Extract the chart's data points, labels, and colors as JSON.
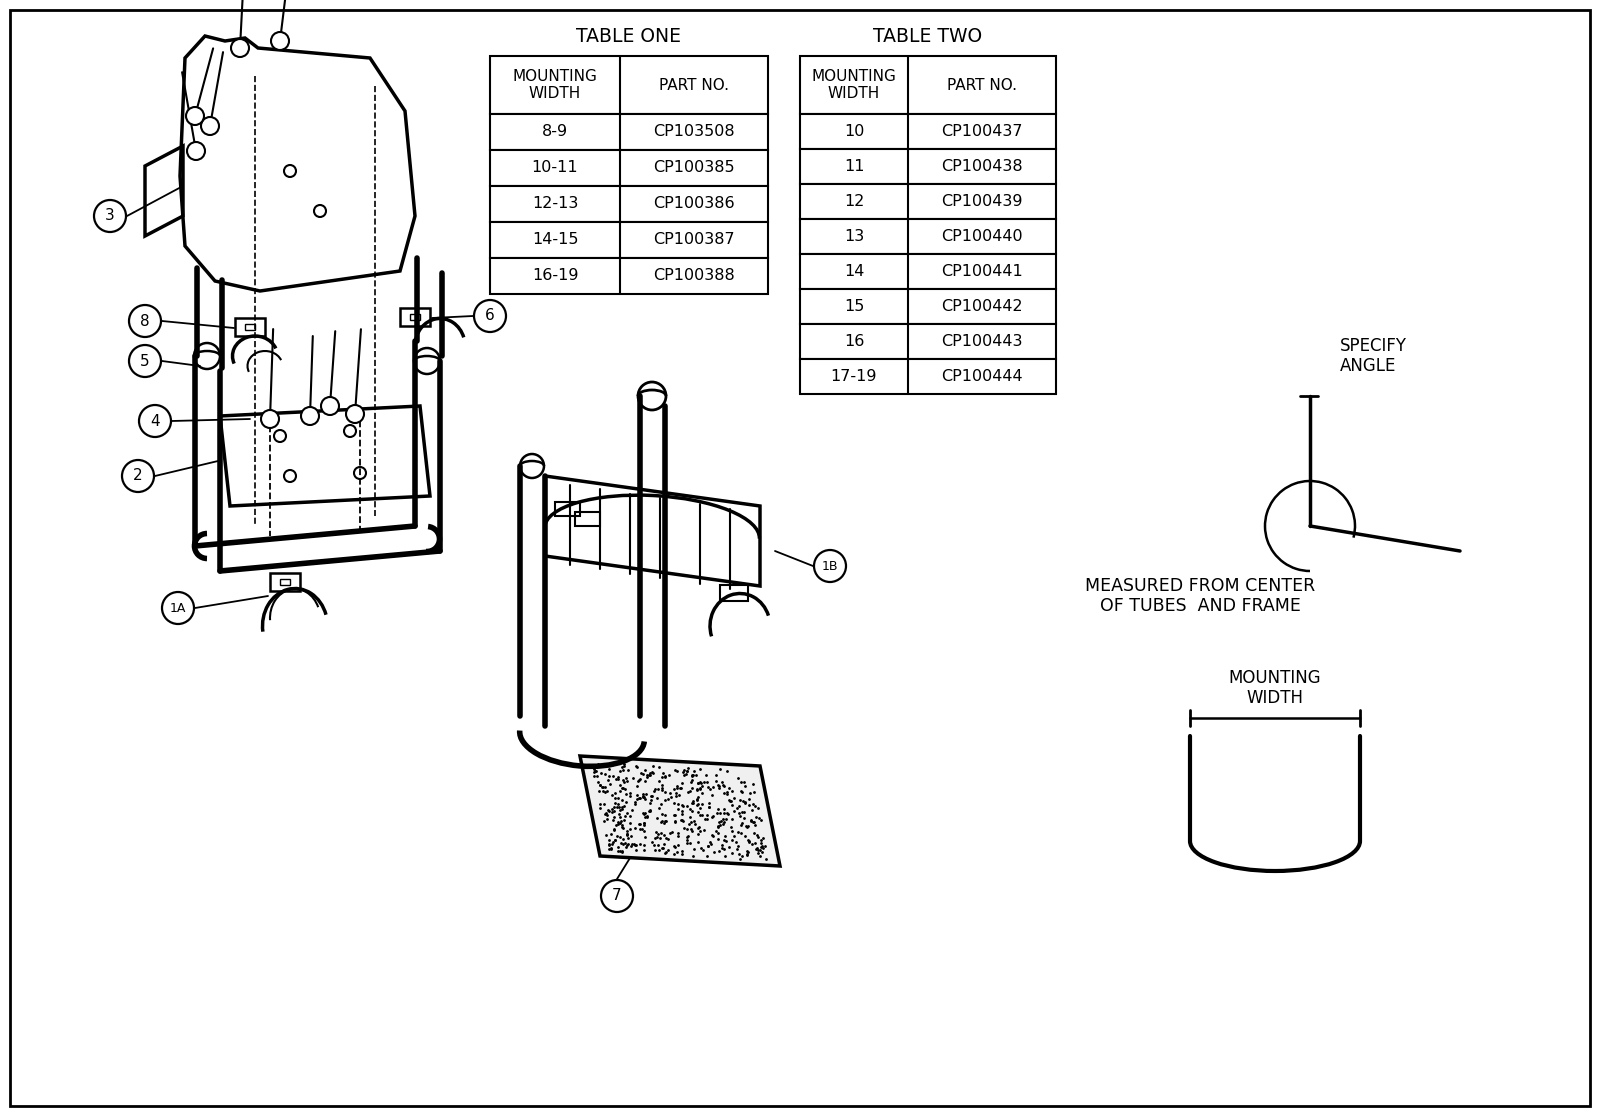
{
  "background_color": "#ffffff",
  "border_color": "#000000",
  "table_one_title": "TABLE ONE",
  "table_two_title": "TABLE TWO",
  "table_one_header_col1": "MOUNTING\nWIDTH",
  "table_one_header_col2": "PART NO.",
  "table_two_header_col1": "MOUNTING\nWIDTH",
  "table_two_header_col2": "PART NO.",
  "table_one_rows": [
    [
      "8-9",
      "CP103508"
    ],
    [
      "10-11",
      "CP100385"
    ],
    [
      "12-13",
      "CP100386"
    ],
    [
      "14-15",
      "CP100387"
    ],
    [
      "16-19",
      "CP100388"
    ]
  ],
  "table_two_rows": [
    [
      "10",
      "CP100437"
    ],
    [
      "11",
      "CP100438"
    ],
    [
      "12",
      "CP100439"
    ],
    [
      "13",
      "CP100440"
    ],
    [
      "14",
      "CP100441"
    ],
    [
      "15",
      "CP100442"
    ],
    [
      "16",
      "CP100443"
    ],
    [
      "17-19",
      "CP100444"
    ]
  ],
  "annotation_measured": "MEASURED FROM CENTER\nOF TUBES  AND FRAME",
  "annotation_mounting": "MOUNTING\nWIDTH",
  "annotation_specify": "SPECIFY\nANGLE",
  "label_1a": "1A",
  "label_1b": "1B",
  "label_2": "2",
  "label_3": "3",
  "label_4": "4",
  "label_5": "5",
  "label_6": "6",
  "label_7": "7",
  "label_8": "8"
}
